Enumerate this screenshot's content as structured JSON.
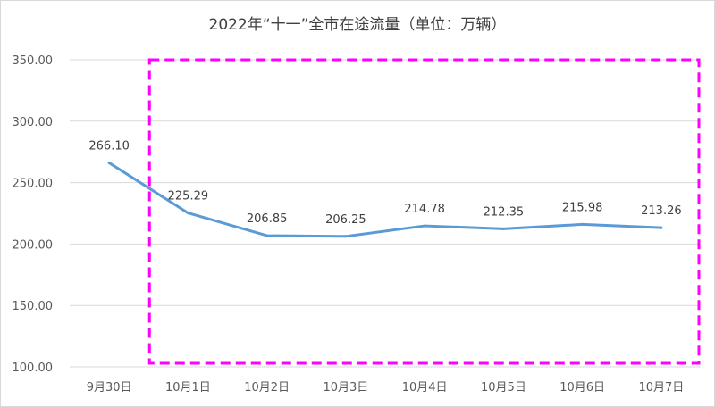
{
  "chart_data": {
    "type": "line",
    "title": "2022年“十一”全市在途流量（单位：万辆）",
    "categories": [
      "9月30日",
      "10月1日",
      "10月2日",
      "10月3日",
      "10月4日",
      "10月5日",
      "10月6日",
      "10月7日"
    ],
    "series": [
      {
        "values": [
          266.1,
          225.29,
          206.85,
          206.25,
          214.78,
          212.35,
          215.98,
          213.26
        ],
        "labels": [
          "266.10",
          "225.29",
          "206.85",
          "206.25",
          "214.78",
          "212.35",
          "215.98",
          "213.26"
        ],
        "color": "#5b9bd5"
      }
    ],
    "ylim": [
      100,
      350
    ],
    "yticks": [
      "100.00",
      "150.00",
      "200.00",
      "250.00",
      "300.00",
      "350.00"
    ],
    "ytick_values": [
      100,
      150,
      200,
      250,
      300,
      350
    ],
    "grid": true,
    "highlight": {
      "type": "dashed-rectangle",
      "color": "#ff00ff",
      "from_category": "10月1日",
      "to_category": "10月7日"
    }
  }
}
